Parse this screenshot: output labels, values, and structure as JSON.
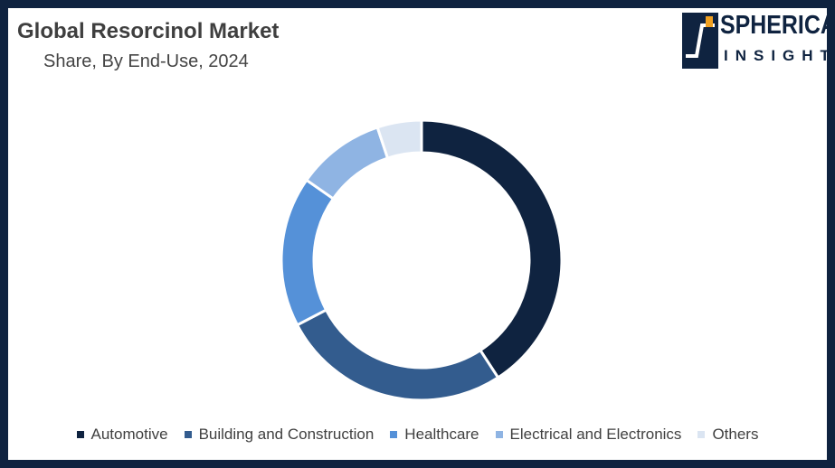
{
  "header": {
    "title": "Global Resorcinol Market",
    "subtitle": "Share, By End-Use, 2024"
  },
  "logo": {
    "line1": "SPHERICAL",
    "line2": "INSIGHTS",
    "color": "#0f2340",
    "accent": "#f0a020"
  },
  "chart_data": {
    "type": "pie",
    "style": "donut",
    "title": "Global Resorcinol Market",
    "subtitle": "Share, By End-Use, 2024",
    "categories": [
      "Automotive",
      "Building and Construction",
      "Healthcare",
      "Electrical and Electronics",
      "Others"
    ],
    "values": [
      40,
      26,
      17,
      10,
      5
    ],
    "colors": [
      "#0f2340",
      "#335c8e",
      "#5591d8",
      "#8fb4e3",
      "#dbe5f2"
    ],
    "legend_position": "bottom"
  }
}
